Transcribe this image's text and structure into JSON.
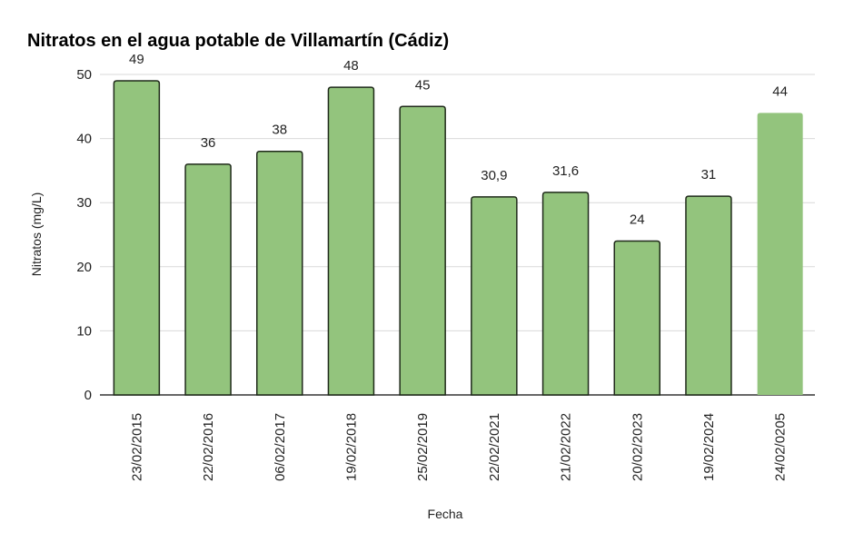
{
  "chart_data": {
    "type": "bar",
    "title": "Nitratos en el agua potable de Villamartín (Cádiz)",
    "xlabel": "Fecha",
    "ylabel": "Nitratos (mg/L)",
    "ylim": [
      0,
      50
    ],
    "yticks": [
      0,
      10,
      20,
      30,
      40,
      50
    ],
    "grid": true,
    "legend": "none",
    "categories": [
      "23/02/2015",
      "22/02/2016",
      "06/02/2017",
      "19/02/2018",
      "25/02/2019",
      "22/02/2021",
      "21/02/2022",
      "20/02/2023",
      "19/02/2024",
      "24/02/0205"
    ],
    "values": [
      49,
      36,
      38,
      48,
      45,
      30.9,
      31.6,
      24,
      31,
      44
    ],
    "data_labels": [
      "49",
      "36",
      "38",
      "48",
      "45",
      "30,9",
      "31,6",
      "24",
      "31",
      "44"
    ],
    "bar_color": "#93c47d",
    "outlined_bars": [
      true,
      true,
      true,
      true,
      true,
      true,
      true,
      true,
      true,
      false
    ]
  }
}
